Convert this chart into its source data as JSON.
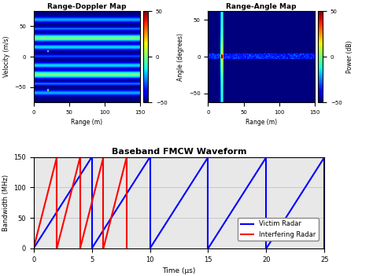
{
  "title_rdm": "Range-Doppler Map",
  "title_ram": "Range-Angle Map",
  "title_waveform": "Baseband FMCW Waveform",
  "rdm_xlabel": "Range (m)",
  "rdm_ylabel": "Velocity (m/s)",
  "ram_xlabel": "Range (m)",
  "ram_ylabel": "Angle (degrees)",
  "cbar_label": "Power (dB)",
  "waveform_xlabel": "Time (μs)",
  "waveform_ylabel": "Bandwidth (MHz)",
  "clim": [
    -50,
    50
  ],
  "rdm_xlim": [
    0,
    150
  ],
  "rdm_ylim": [
    -75,
    75
  ],
  "ram_xlim": [
    0,
    150
  ],
  "ram_ylim": [
    -62,
    62
  ],
  "waveform_xlim": [
    0,
    25
  ],
  "waveform_ylim": [
    0,
    150
  ],
  "victim_color": "#0000ff",
  "interfering_color": "#ff0000",
  "victim_period": 5.0,
  "interfering_period": 2.0,
  "victim_chirps": 5,
  "interfering_chirps": 4,
  "legend_labels": [
    "Victim Radar",
    "Interfering Radar"
  ],
  "background_color": "#ffffff",
  "waveform_bg": "#e8e8e8"
}
